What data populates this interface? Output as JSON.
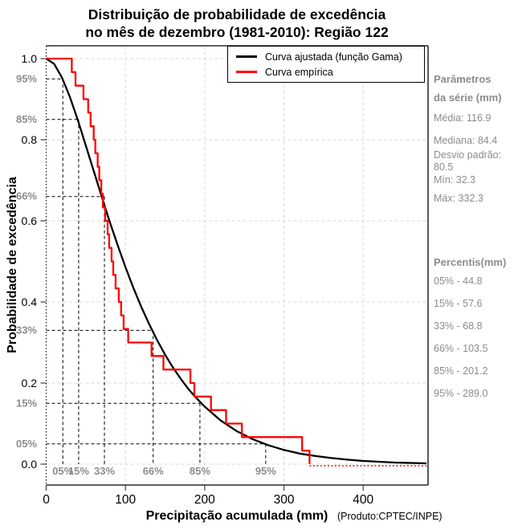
{
  "title": {
    "line1": "Distribuição de probabilidade de excedência",
    "line2": "no mês de dezembro (1981-2010): Região 122"
  },
  "axes": {
    "ylabel": "Probabilidade de excedência",
    "xlabel": "Precipitação acumulada (mm)",
    "xlabel_note": "(Produto:CPTEC/INPE)"
  },
  "legend": {
    "items": [
      {
        "label": "Curva ajustada (função Gama)",
        "color": "#000000"
      },
      {
        "label": "Curva empírica",
        "color": "#ff0000"
      }
    ]
  },
  "side_panel": {
    "params_header1": "Parâmetros",
    "params_header2": "da série (mm)",
    "stats": [
      "Média: 116.9",
      "Mediana: 84.4",
      "Desvio padrão: 80.5",
      "Mín: 32.3",
      "Máx: 332.3"
    ],
    "percentiles_header": "Percentis(mm)",
    "percentiles": [
      "05% - 44.8",
      "15% - 57.6",
      "33% - 68.8",
      "66% - 103.5",
      "85% - 201.2",
      "95% - 289.0"
    ]
  },
  "colors": {
    "black": "#000000",
    "red": "#ff0000",
    "grid": "#d9d9d9",
    "gray_text": "#8c8c8c",
    "tick": "#404040"
  },
  "chart_data": {
    "type": "line",
    "title": "Distribuição de probabilidade de excedência no mês de dezembro (1981-2010): Região 122",
    "xlabel": "Precipitação acumulada (mm)",
    "ylabel": "Probabilidade de excedência",
    "xlim": [
      0,
      480
    ],
    "ylim": [
      0.0,
      1.0
    ],
    "x_ticks": [
      0,
      100,
      200,
      300,
      400
    ],
    "y_ticks": [
      0.0,
      0.2,
      0.4,
      0.6,
      0.8,
      1.0
    ],
    "grid": true,
    "legend_position": "top-right",
    "prob_levels": [
      {
        "p": 0.95,
        "p_label": "95%",
        "q_label": "05%",
        "x_fit_mm": 21
      },
      {
        "p": 0.85,
        "p_label": "85%",
        "q_label": "15%",
        "x_fit_mm": 41
      },
      {
        "p": 0.66,
        "p_label": "66%",
        "q_label": "33%",
        "x_fit_mm": 73.5
      },
      {
        "p": 0.33,
        "p_label": "33%",
        "q_label": "66%",
        "x_fit_mm": 135
      },
      {
        "p": 0.15,
        "p_label": "15%",
        "q_label": "85%",
        "x_fit_mm": 194
      },
      {
        "p": 0.05,
        "p_label": "05%",
        "q_label": "95%",
        "x_fit_mm": 277
      }
    ],
    "series": [
      {
        "name": "Curva ajustada (função Gama)",
        "color": "#000000",
        "x": [
          0,
          10,
          20,
          30,
          40,
          50,
          60,
          70,
          80,
          90,
          100,
          110,
          120,
          130,
          140,
          150,
          160,
          170,
          180,
          190,
          200,
          220,
          240,
          260,
          280,
          300,
          320,
          340,
          360,
          380,
          400,
          420,
          440,
          460,
          480
        ],
        "p": [
          1.0,
          0.987,
          0.953,
          0.905,
          0.848,
          0.786,
          0.723,
          0.66,
          0.599,
          0.541,
          0.486,
          0.435,
          0.388,
          0.345,
          0.306,
          0.27,
          0.238,
          0.21,
          0.184,
          0.162,
          0.142,
          0.108,
          0.082,
          0.062,
          0.047,
          0.035,
          0.026,
          0.02,
          0.015,
          0.011,
          0.008,
          0.006,
          0.004,
          0.003,
          0.002
        ]
      },
      {
        "name": "Curva empírica",
        "color": "#ff0000",
        "n": 30,
        "sorted_values_mm": [
          32.3,
          37,
          47,
          53,
          56,
          60,
          62,
          65,
          67,
          69.5,
          71.5,
          74.5,
          77.5,
          79.5,
          82.5,
          84.6,
          87.6,
          91.6,
          94.6,
          97.7,
          103.5,
          133,
          148,
          182,
          187,
          208,
          227,
          247,
          323,
          332.3
        ]
      }
    ]
  }
}
